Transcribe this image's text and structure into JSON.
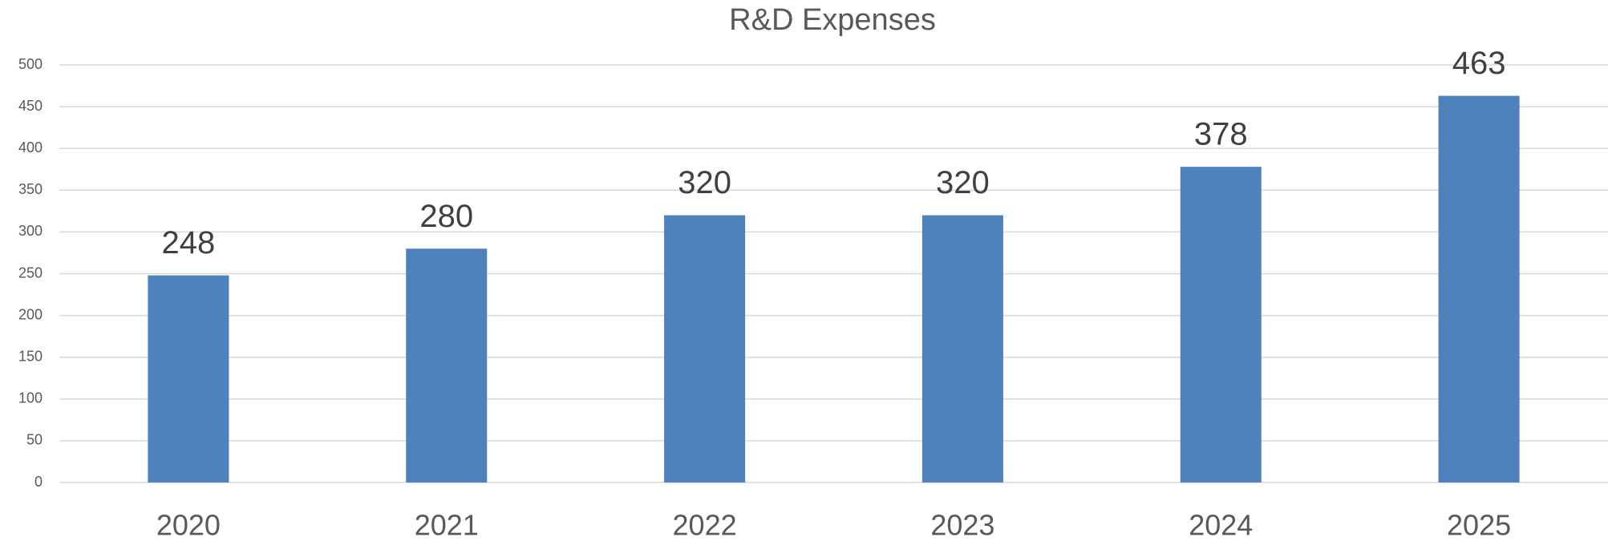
{
  "chart_data": {
    "type": "bar",
    "title": "R&D Expenses",
    "categories": [
      "2020",
      "2021",
      "2022",
      "2023",
      "2024",
      "2025"
    ],
    "values": [
      248,
      280,
      320,
      320,
      378,
      463
    ],
    "color": "#4f81bd",
    "ylim": [
      0,
      500
    ],
    "yticks": [
      0,
      50,
      100,
      150,
      200,
      250,
      300,
      350,
      400,
      450,
      500
    ],
    "grid": true
  }
}
